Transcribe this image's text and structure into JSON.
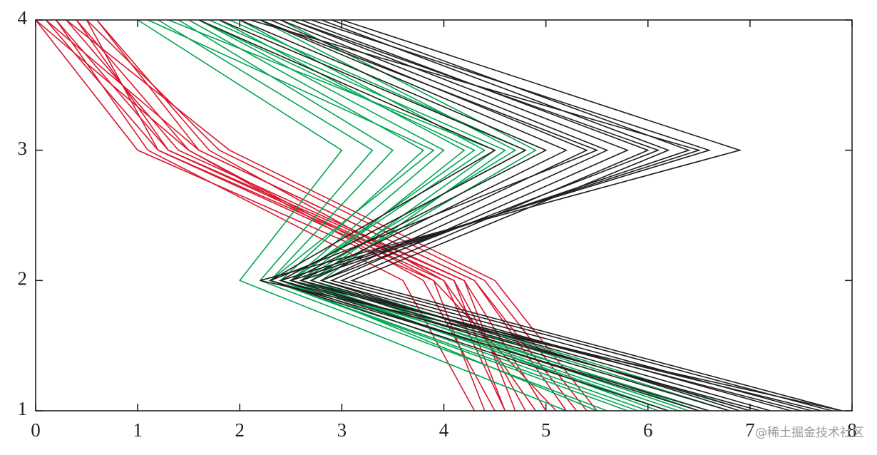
{
  "chart_data": {
    "type": "line",
    "y": [
      4,
      3,
      2,
      1
    ],
    "series": [
      {
        "color": "#d7192f",
        "x": [
          0,
          1,
          3.9,
          4.4
        ]
      },
      {
        "color": "#d7192f",
        "x": [
          0.1,
          1.2,
          4.0,
          4.6
        ]
      },
      {
        "color": "#d7192f",
        "x": [
          0.2,
          1.3,
          4.1,
          4.8
        ]
      },
      {
        "color": "#d7192f",
        "x": [
          0.3,
          1.4,
          4.2,
          5.0
        ]
      },
      {
        "color": "#d7192f",
        "x": [
          0.1,
          1.6,
          4.3,
          5.2
        ]
      },
      {
        "color": "#d7192f",
        "x": [
          0.4,
          1.5,
          3.8,
          4.5
        ]
      },
      {
        "color": "#d7192f",
        "x": [
          0.5,
          1.8,
          4.4,
          5.4
        ]
      },
      {
        "color": "#d7192f",
        "x": [
          0.2,
          1.1,
          3.6,
          4.3
        ]
      },
      {
        "color": "#d7192f",
        "x": [
          0.6,
          1.7,
          4.0,
          4.9
        ]
      },
      {
        "color": "#d7192f",
        "x": [
          0.3,
          1.9,
          4.5,
          5.5
        ]
      },
      {
        "color": "#d7192f",
        "x": [
          0.4,
          1.3,
          4.2,
          4.7
        ]
      },
      {
        "color": "#d7192f",
        "x": [
          0,
          1.5,
          3.9,
          5.1
        ]
      },
      {
        "color": "#d7192f",
        "x": [
          0.5,
          1.2,
          4.1,
          4.6
        ]
      },
      {
        "color": "#d7192f",
        "x": [
          0.6,
          1.6,
          4.3,
          5.3
        ]
      },
      {
        "color": "#00a651",
        "x": [
          1.0,
          3.0,
          2.0,
          5.2
        ]
      },
      {
        "color": "#00a651",
        "x": [
          1.2,
          3.3,
          2.2,
          5.6
        ]
      },
      {
        "color": "#00a651",
        "x": [
          1.4,
          3.5,
          2.3,
          5.8
        ]
      },
      {
        "color": "#00a651",
        "x": [
          1.5,
          3.8,
          2.4,
          6.0
        ]
      },
      {
        "color": "#00a651",
        "x": [
          1.6,
          4.0,
          2.5,
          6.2
        ]
      },
      {
        "color": "#00a651",
        "x": [
          1.8,
          4.2,
          2.6,
          6.4
        ]
      },
      {
        "color": "#00a651",
        "x": [
          2.0,
          4.4,
          2.5,
          6.6
        ]
      },
      {
        "color": "#00a651",
        "x": [
          1.3,
          4.5,
          2.7,
          6.8
        ]
      },
      {
        "color": "#00a651",
        "x": [
          1.7,
          4.6,
          2.8,
          7.0
        ]
      },
      {
        "color": "#00a651",
        "x": [
          2.2,
          4.7,
          2.6,
          6.1
        ]
      },
      {
        "color": "#00a651",
        "x": [
          1.9,
          4.8,
          2.4,
          5.5
        ]
      },
      {
        "color": "#00a651",
        "x": [
          1.1,
          3.9,
          2.3,
          5.9
        ]
      },
      {
        "color": "#00a651",
        "x": [
          2.4,
          4.9,
          2.7,
          6.5
        ]
      },
      {
        "color": "#00a651",
        "x": [
          1.6,
          4.3,
          2.5,
          6.3
        ]
      },
      {
        "color": "#231f20",
        "x": [
          1.6,
          4.5,
          2.3,
          6.2
        ]
      },
      {
        "color": "#231f20",
        "x": [
          1.8,
          4.8,
          2.4,
          6.5
        ]
      },
      {
        "color": "#231f20",
        "x": [
          2.0,
          5.0,
          2.5,
          6.8
        ]
      },
      {
        "color": "#231f20",
        "x": [
          2.2,
          5.2,
          2.6,
          7.0
        ]
      },
      {
        "color": "#231f20",
        "x": [
          2.3,
          5.4,
          2.7,
          7.2
        ]
      },
      {
        "color": "#231f20",
        "x": [
          2.4,
          5.6,
          2.8,
          7.4
        ]
      },
      {
        "color": "#231f20",
        "x": [
          2.5,
          5.8,
          2.9,
          7.6
        ]
      },
      {
        "color": "#231f20",
        "x": [
          2.6,
          6.0,
          3.0,
          7.8
        ]
      },
      {
        "color": "#231f20",
        "x": [
          2.8,
          6.2,
          3.1,
          7.9
        ]
      },
      {
        "color": "#231f20",
        "x": [
          2.9,
          6.4,
          2.6,
          7.5
        ]
      },
      {
        "color": "#231f20",
        "x": [
          2.7,
          6.6,
          2.4,
          7.1
        ]
      },
      {
        "color": "#231f20",
        "x": [
          3.0,
          6.9,
          2.2,
          7.9
        ]
      },
      {
        "color": "#231f20",
        "x": [
          2.1,
          6.5,
          2.5,
          7.7
        ]
      },
      {
        "color": "#231f20",
        "x": [
          2.5,
          6.1,
          2.8,
          6.9
        ]
      },
      {
        "color": "#231f20",
        "x": [
          2.2,
          5.5,
          2.3,
          6.6
        ]
      }
    ],
    "xlim": [
      0,
      8
    ],
    "xticks": [
      0,
      1,
      2,
      3,
      4,
      5,
      6,
      7,
      8
    ],
    "ylim": [
      1,
      4
    ],
    "yticks": [
      1,
      2,
      3,
      4
    ],
    "grid": false,
    "watermark": "@稀土掘金技术社区"
  }
}
